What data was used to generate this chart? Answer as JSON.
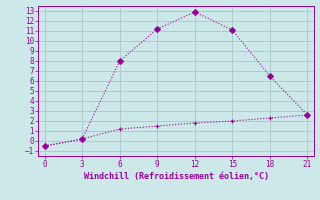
{
  "xlabel": "Windchill (Refroidissement éolien,°C)",
  "line1_x": [
    0,
    3,
    6,
    9,
    12,
    15,
    18,
    21
  ],
  "line1_y": [
    -0.5,
    0.2,
    1.2,
    1.5,
    1.8,
    2.0,
    2.3,
    2.6
  ],
  "line2_x": [
    0,
    3,
    6,
    9,
    12,
    15,
    18,
    21
  ],
  "line2_y": [
    -0.5,
    0.2,
    8.0,
    11.2,
    12.9,
    11.1,
    6.5,
    2.6
  ],
  "color": "#990099",
  "bg_color": "#cce8e8",
  "grid_color": "#aacccc",
  "xlim": [
    -0.5,
    21.5
  ],
  "ylim": [
    -1.5,
    13.5
  ],
  "xticks": [
    0,
    3,
    6,
    9,
    12,
    15,
    18,
    21
  ],
  "yticks": [
    -1,
    0,
    1,
    2,
    3,
    4,
    5,
    6,
    7,
    8,
    9,
    10,
    11,
    12,
    13
  ]
}
